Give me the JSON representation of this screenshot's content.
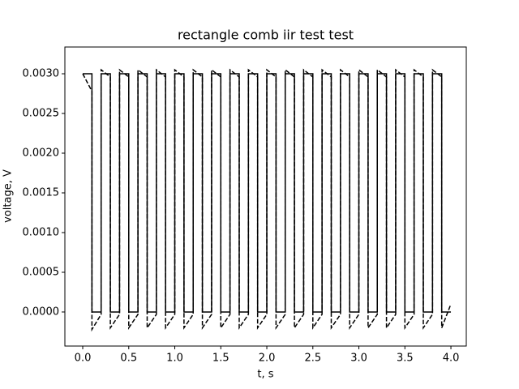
{
  "chart_data": {
    "type": "line",
    "title": "rectangle comb iir test test",
    "xlabel": "t, s",
    "ylabel": "voltage, V",
    "x": [
      0,
      0.1,
      0.1,
      0.2,
      0.2,
      0.3,
      0.3,
      0.4,
      0.4,
      0.5,
      0.5,
      0.6,
      0.6,
      0.7,
      0.7,
      0.8,
      0.8,
      0.9,
      0.9,
      1.0,
      1.0,
      1.1,
      1.1,
      1.2,
      1.2,
      1.3,
      1.3,
      1.4,
      1.4,
      1.5,
      1.5,
      1.6,
      1.6,
      1.7,
      1.7,
      1.8,
      1.8,
      1.9,
      1.9,
      2.0,
      2.0,
      2.1,
      2.1,
      2.2,
      2.2,
      2.3,
      2.3,
      2.4,
      2.4,
      2.5,
      2.5,
      2.6,
      2.6,
      2.7,
      2.7,
      2.8,
      2.8,
      2.9,
      2.9,
      3.0,
      3.0,
      3.1,
      3.1,
      3.2,
      3.2,
      3.3,
      3.3,
      3.4,
      3.4,
      3.5,
      3.5,
      3.6,
      3.6,
      3.7,
      3.7,
      3.8,
      3.8,
      3.9,
      3.9,
      4.0
    ],
    "series": [
      {
        "color": "#000000",
        "dash": "solid",
        "values": [
          0.003,
          0.003,
          0,
          0,
          0.003,
          0.003,
          0,
          0,
          0.003,
          0.003,
          0,
          0,
          0.003,
          0.003,
          0,
          0,
          0.003,
          0.003,
          0,
          0,
          0.003,
          0.003,
          0,
          0,
          0.003,
          0.003,
          0,
          0,
          0.003,
          0.003,
          0,
          0,
          0.003,
          0.003,
          0,
          0,
          0.003,
          0.003,
          0,
          0,
          0.003,
          0.003,
          0,
          0,
          0.003,
          0.003,
          0,
          0,
          0.003,
          0.003,
          0,
          0,
          0.003,
          0.003,
          0,
          0,
          0.003,
          0.003,
          0,
          0,
          0.003,
          0.003,
          0,
          0,
          0.003,
          0.003,
          0,
          0,
          0.003,
          0.003,
          0,
          0,
          0.003,
          0.003,
          0,
          0,
          0.003,
          0.003,
          0,
          0
        ]
      },
      {
        "color": "#000000",
        "dash": "dashed",
        "values": [
          0.003,
          0.00278,
          -0.00022,
          -3e-05,
          0.00305,
          0.00296,
          -0.0002,
          -3e-05,
          0.00305,
          0.00296,
          -0.0002,
          -3e-05,
          0.00305,
          0.00296,
          -0.0002,
          -3e-05,
          0.00305,
          0.00296,
          -0.0002,
          -3e-05,
          0.00305,
          0.00296,
          -0.0002,
          -3e-05,
          0.00305,
          0.00296,
          -0.0002,
          -3e-05,
          0.00305,
          0.00296,
          -0.0002,
          -3e-05,
          0.00305,
          0.00296,
          -0.0002,
          -3e-05,
          0.00305,
          0.00296,
          -0.0002,
          -3e-05,
          0.00305,
          0.00296,
          -0.0002,
          -3e-05,
          0.00305,
          0.00296,
          -0.0002,
          -3e-05,
          0.00305,
          0.00296,
          -0.0002,
          -3e-05,
          0.00305,
          0.00296,
          -0.0002,
          -3e-05,
          0.00305,
          0.00296,
          -0.0002,
          -3e-05,
          0.00305,
          0.00296,
          -0.0002,
          -3e-05,
          0.00305,
          0.00296,
          -0.0002,
          -3e-05,
          0.00305,
          0.00296,
          -0.0002,
          -3e-05,
          0.00305,
          0.00296,
          -0.0002,
          -3e-05,
          0.00305,
          0.00296,
          -0.0002,
          0.0001
        ]
      }
    ],
    "xlim": [
      -0.194,
      4.167
    ],
    "ylim": [
      -0.000429,
      0.003337
    ],
    "xticks": [
      {
        "value": 0,
        "label": "0.0"
      },
      {
        "value": 0.5,
        "label": "0.5"
      },
      {
        "value": 1,
        "label": "1.0"
      },
      {
        "value": 1.5,
        "label": "1.5"
      },
      {
        "value": 2,
        "label": "2.0"
      },
      {
        "value": 2.5,
        "label": "2.5"
      },
      {
        "value": 3,
        "label": "3.0"
      },
      {
        "value": 3.5,
        "label": "3.5"
      },
      {
        "value": 4,
        "label": "4.0"
      }
    ],
    "yticks": [
      {
        "value": 0,
        "label": "0.0000"
      },
      {
        "value": 0.0005,
        "label": "0.0005"
      },
      {
        "value": 0.001,
        "label": "0.0010"
      },
      {
        "value": 0.0015,
        "label": "0.0015"
      },
      {
        "value": 0.002,
        "label": "0.0020"
      },
      {
        "value": 0.0025,
        "label": "0.0025"
      },
      {
        "value": 0.003,
        "label": "0.0030"
      }
    ]
  }
}
